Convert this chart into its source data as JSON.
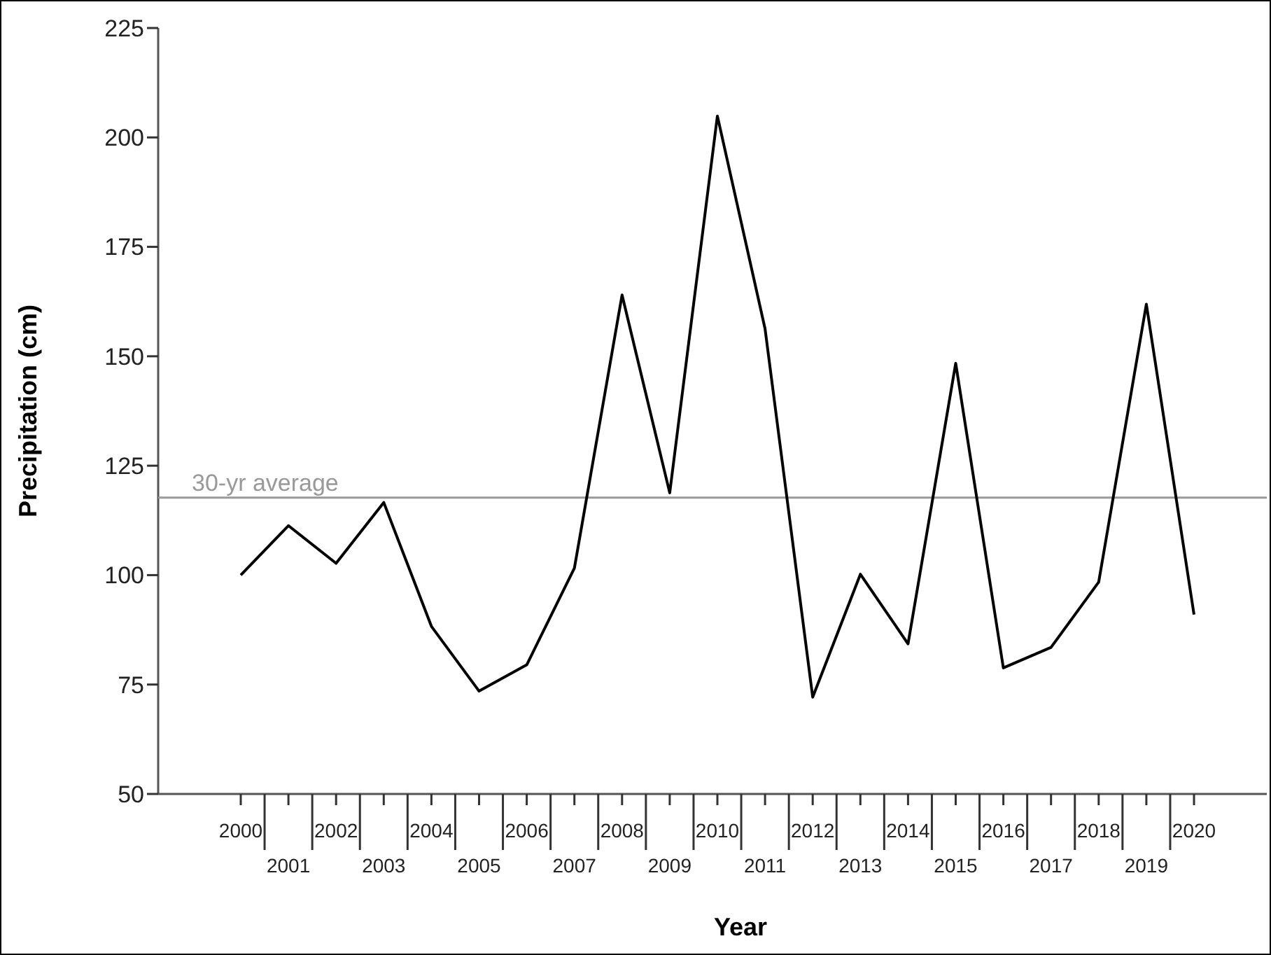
{
  "chart_data": {
    "type": "line",
    "xlabel": "Year",
    "ylabel": "Precipitation (cm)",
    "categories": [
      "2000",
      "2001",
      "2002",
      "2003",
      "2004",
      "2005",
      "2006",
      "2007",
      "2008",
      "2009",
      "2010",
      "2011",
      "2012",
      "2013",
      "2014",
      "2015",
      "2016",
      "2017",
      "2018",
      "2019",
      "2020"
    ],
    "series": [
      {
        "color": "#000000",
        "values": [
          100.0,
          111.3,
          102.7,
          116.6,
          88.3,
          73.5,
          79.5,
          101.6,
          164.0,
          118.8,
          204.9,
          156.3,
          72.1,
          100.2,
          84.3,
          148.4,
          78.8,
          83.5,
          98.4,
          161.9,
          91.0
        ]
      }
    ],
    "ylim": [
      50,
      225
    ],
    "yticks": [
      50,
      75,
      100,
      125,
      150,
      175,
      200,
      225
    ],
    "ref_lines": [
      {
        "axis": "y",
        "value": 117.7,
        "label": "30-yr average",
        "color": "#999999"
      }
    ],
    "grid": false,
    "marker": "none",
    "line_style": "solid"
  }
}
